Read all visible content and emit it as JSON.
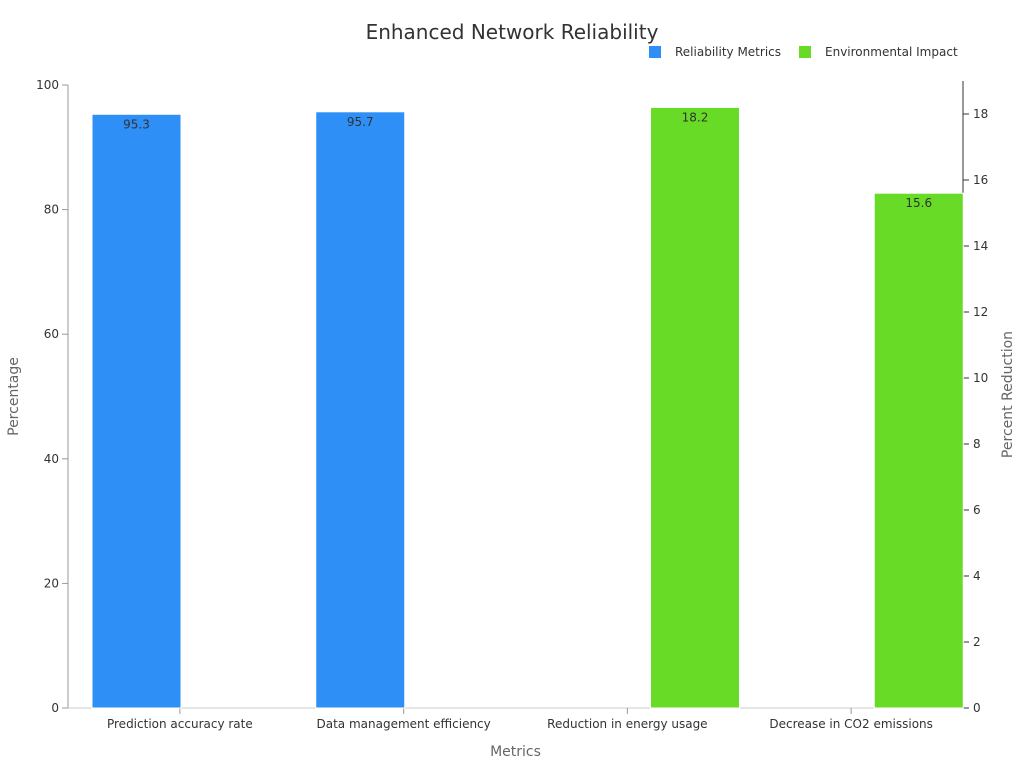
{
  "chart_data": {
    "type": "bar",
    "title": "Enhanced Network Reliability",
    "xlabel": "Metrics",
    "ylabel": "Percentage",
    "y2label": "Percent Reduction",
    "categories": [
      "Prediction accuracy rate",
      "Data management efficiency",
      "Reduction in energy usage",
      "Decrease in CO2 emissions"
    ],
    "series": [
      {
        "name": "Reliability Metrics",
        "axis": "left",
        "color": "#2e8ff7",
        "values": [
          95.3,
          95.7,
          null,
          null
        ]
      },
      {
        "name": "Environmental Impact",
        "axis": "right",
        "color": "#67db26",
        "values": [
          null,
          null,
          18.2,
          15.6
        ]
      }
    ],
    "ylim": [
      0,
      100
    ],
    "y2lim": [
      0,
      19
    ],
    "yticks": [
      0,
      20,
      40,
      60,
      80,
      100
    ],
    "y2ticks": [
      0,
      2,
      4,
      6,
      8,
      10,
      12,
      14,
      16,
      18
    ],
    "grid": false,
    "legend_position": "top-right"
  }
}
